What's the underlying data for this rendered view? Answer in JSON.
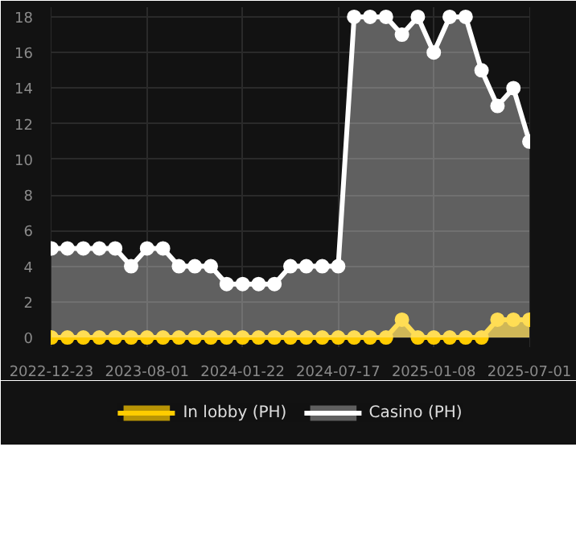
{
  "chart_data": {
    "type": "area",
    "categories": [
      "2022-12-23",
      null,
      null,
      null,
      null,
      null,
      "2023-08-01",
      null,
      null,
      null,
      null,
      null,
      "2024-01-22",
      null,
      null,
      null,
      null,
      null,
      "2024-07-17",
      null,
      null,
      null,
      null,
      null,
      "2025-01-08",
      null,
      null,
      null,
      null,
      null,
      "2025-07-01"
    ],
    "series": [
      {
        "name": "In lobby (PH)",
        "color": "#ffcc00",
        "values": [
          0,
          0,
          0,
          0,
          0,
          0,
          0,
          0,
          0,
          0,
          0,
          0,
          0,
          0,
          0,
          0,
          0,
          0,
          0,
          0,
          0,
          0,
          1,
          0,
          0,
          0,
          0,
          0,
          1,
          1,
          1
        ]
      },
      {
        "name": "Casino (PH)",
        "color": "#ffffff",
        "values": [
          5,
          5,
          5,
          5,
          5,
          4,
          5,
          5,
          4,
          4,
          4,
          3,
          3,
          3,
          3,
          4,
          4,
          4,
          4,
          18,
          18,
          18,
          17,
          18,
          16,
          18,
          18,
          15,
          13,
          14,
          11
        ]
      }
    ],
    "ylim": [
      0,
      18
    ],
    "yticks": [
      0,
      2,
      4,
      6,
      8,
      10,
      12,
      14,
      16,
      18
    ],
    "grid": true,
    "legend": "bottom",
    "marker": "circle",
    "line_style": "solid"
  }
}
